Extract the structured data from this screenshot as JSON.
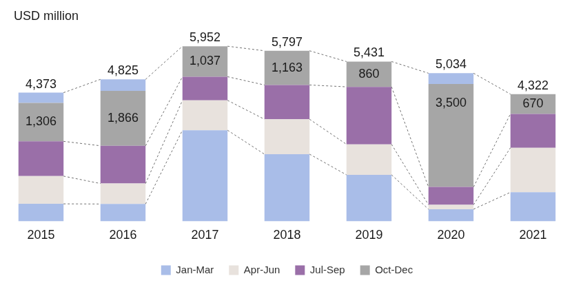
{
  "chart_data": {
    "type": "bar",
    "stacked": true,
    "y_label": "USD million",
    "categories": [
      "2015",
      "2016",
      "2017",
      "2018",
      "2019",
      "2020",
      "2021"
    ],
    "series": [
      {
        "name": "Jan-Mar",
        "color": "#a9bde8",
        "values": [
          592,
          587,
          3095,
          2281,
          1579,
          410,
          985
        ]
      },
      {
        "name": "Apr-Jun",
        "color": "#e8e2dd",
        "values": [
          942,
          696,
          1016,
          1188,
          1037,
          151,
          1514
        ]
      },
      {
        "name": "Jul-Sep",
        "color": "#9a6fa8",
        "values": [
          1183,
          1284,
          804,
          1165,
          1955,
          605,
          1153
        ]
      },
      {
        "name": "Oct-Dec",
        "color": "#a6a6a6",
        "values": [
          1306,
          1866,
          1037,
          1163,
          860,
          3500,
          670
        ],
        "value_labels": [
          "1,306",
          "1,866",
          "1,037",
          "1,163",
          "860",
          "3,500",
          "670"
        ],
        "data_labels": true
      },
      {
        "color": "#a9bde8",
        "values": [
          350,
          392,
          null,
          null,
          null,
          368,
          null
        ]
      }
    ],
    "totals": [
      4373,
      4825,
      5952,
      5797,
      5431,
      5034,
      4322
    ],
    "total_labels": [
      "4,373",
      "4,825",
      "5,952",
      "5,797",
      "5,431",
      "5,034",
      "4,322"
    ],
    "ylim": [
      0,
      6400
    ],
    "tick_labels": "x",
    "grid": false,
    "legend": "bottom"
  }
}
